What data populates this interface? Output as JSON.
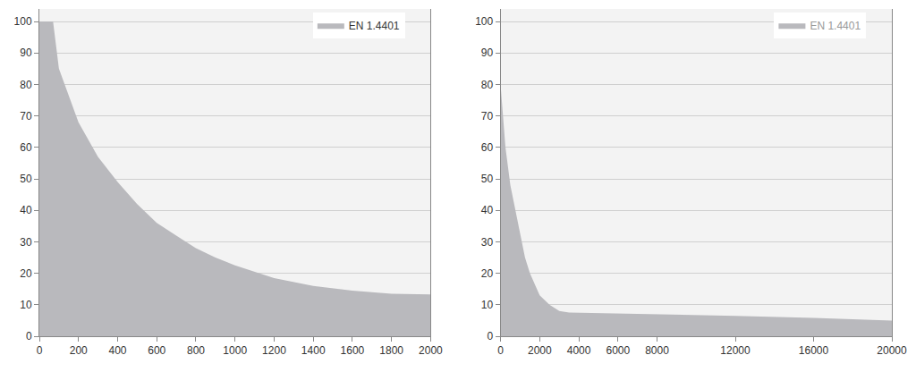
{
  "chart_data": [
    {
      "type": "area",
      "x": [
        0,
        70,
        100,
        200,
        300,
        400,
        500,
        600,
        700,
        800,
        900,
        1000,
        1200,
        1400,
        1600,
        1800,
        2000
      ],
      "series": [
        {
          "name": "EN 1.4401",
          "color": "#b9b9bd",
          "values": [
            100,
            100,
            85,
            68,
            57,
            49,
            42,
            36,
            32,
            28,
            25,
            22.5,
            18.5,
            16,
            14.5,
            13.5,
            13.3
          ]
        }
      ],
      "xlim": [
        0,
        2000
      ],
      "xticks": [
        0,
        200,
        400,
        600,
        800,
        1000,
        1200,
        1400,
        1600,
        1800,
        2000
      ],
      "ylim": [
        0,
        104
      ],
      "yticks": [
        0,
        10,
        20,
        30,
        40,
        50,
        60,
        70,
        80,
        90,
        100
      ],
      "grid": true,
      "legend": "top right"
    },
    {
      "type": "area",
      "x": [
        0,
        250,
        500,
        750,
        1000,
        1250,
        1500,
        2000,
        2500,
        3000,
        3500,
        8000,
        12000,
        16000,
        20000
      ],
      "series": [
        {
          "name": "EN 1.4401",
          "color": "#b9b9bd",
          "values": [
            80,
            60,
            48,
            40,
            32,
            25,
            20,
            13,
            10,
            8,
            7.5,
            7,
            6.5,
            5.8,
            5
          ]
        }
      ],
      "xlim": [
        0,
        20000
      ],
      "xticks": [
        0,
        2000,
        4000,
        6000,
        8000,
        12000,
        16000,
        20000
      ],
      "ylim": [
        0,
        104
      ],
      "yticks": [
        0,
        10,
        20,
        30,
        40,
        50,
        60,
        70,
        80,
        90,
        100
      ],
      "grid": true,
      "legend": "top right"
    }
  ]
}
